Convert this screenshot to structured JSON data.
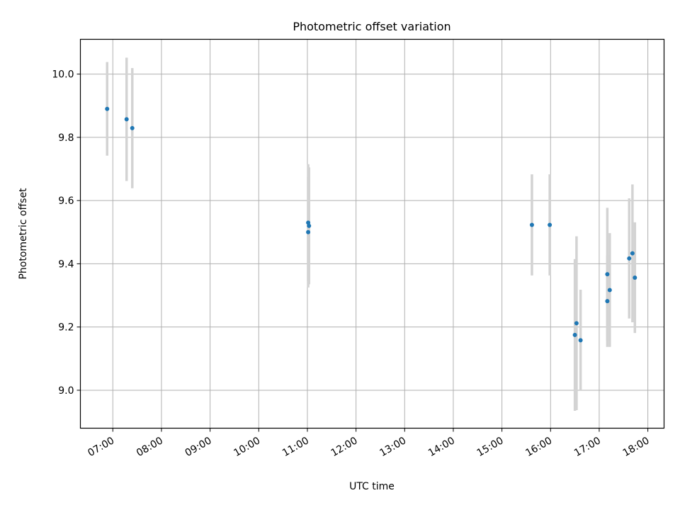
{
  "chart_data": {
    "type": "scatter",
    "title": "Photometric offset variation",
    "xlabel": "UTC time",
    "ylabel": "Photometric offset",
    "grid": true,
    "xlim": [
      "06:20",
      "18:20"
    ],
    "ylim": [
      8.88,
      10.11
    ],
    "x_ticks": [
      "07:00",
      "08:00",
      "09:00",
      "10:00",
      "11:00",
      "12:00",
      "13:00",
      "14:00",
      "15:00",
      "16:00",
      "17:00",
      "18:00"
    ],
    "y_ticks": [
      "9.0",
      "9.2",
      "9.4",
      "9.6",
      "9.8",
      "10.0"
    ],
    "marker_color": "#1f77b4",
    "errorbar_color": "#d3d3d3",
    "points": [
      {
        "x": "06:53",
        "y": 9.89,
        "yerr": 0.148
      },
      {
        "x": "07:17",
        "y": 9.857,
        "yerr": 0.195
      },
      {
        "x": "07:24",
        "y": 9.829,
        "yerr": 0.19
      },
      {
        "x": "11:01",
        "y": 9.53,
        "yerr": 0.185
      },
      {
        "x": "11:02",
        "y": 9.52,
        "yerr": 0.185
      },
      {
        "x": "11:01",
        "y": 9.5,
        "yerr": 0.175
      },
      {
        "x": "15:37",
        "y": 9.523,
        "yerr": 0.16
      },
      {
        "x": "15:59",
        "y": 9.523,
        "yerr": 0.16
      },
      {
        "x": "16:30",
        "y": 9.175,
        "yerr": 0.24
      },
      {
        "x": "16:32",
        "y": 9.212,
        "yerr": 0.275
      },
      {
        "x": "16:37",
        "y": 9.158,
        "yerr": 0.16
      },
      {
        "x": "17:10",
        "y": 9.367,
        "yerr": 0.21
      },
      {
        "x": "17:10",
        "y": 9.282,
        "yerr": 0.145
      },
      {
        "x": "17:13",
        "y": 9.317,
        "yerr": 0.18
      },
      {
        "x": "17:37",
        "y": 9.417,
        "yerr": 0.19
      },
      {
        "x": "17:41",
        "y": 9.433,
        "yerr": 0.218
      },
      {
        "x": "17:44",
        "y": 9.356,
        "yerr": 0.175
      }
    ]
  }
}
